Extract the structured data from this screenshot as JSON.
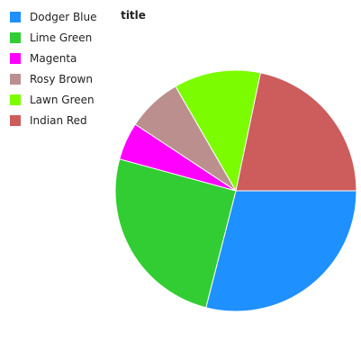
{
  "chart_data": {
    "type": "pie",
    "title": "title",
    "legend_position": "top-left",
    "series": [
      {
        "name": "Dodger Blue",
        "value": 28.7,
        "color": "#1e90ff"
      },
      {
        "name": "Lime Green",
        "value": 25.0,
        "color": "#32cd32"
      },
      {
        "name": "Magenta",
        "value": 5.0,
        "color": "#ff00ff"
      },
      {
        "name": "Rosy Brown",
        "value": 7.3,
        "color": "#bc8f8f"
      },
      {
        "name": "Lawn Green",
        "value": 11.5,
        "color": "#7cfc00"
      },
      {
        "name": "Indian Red",
        "value": 21.5,
        "color": "#cd5c5c"
      }
    ]
  }
}
